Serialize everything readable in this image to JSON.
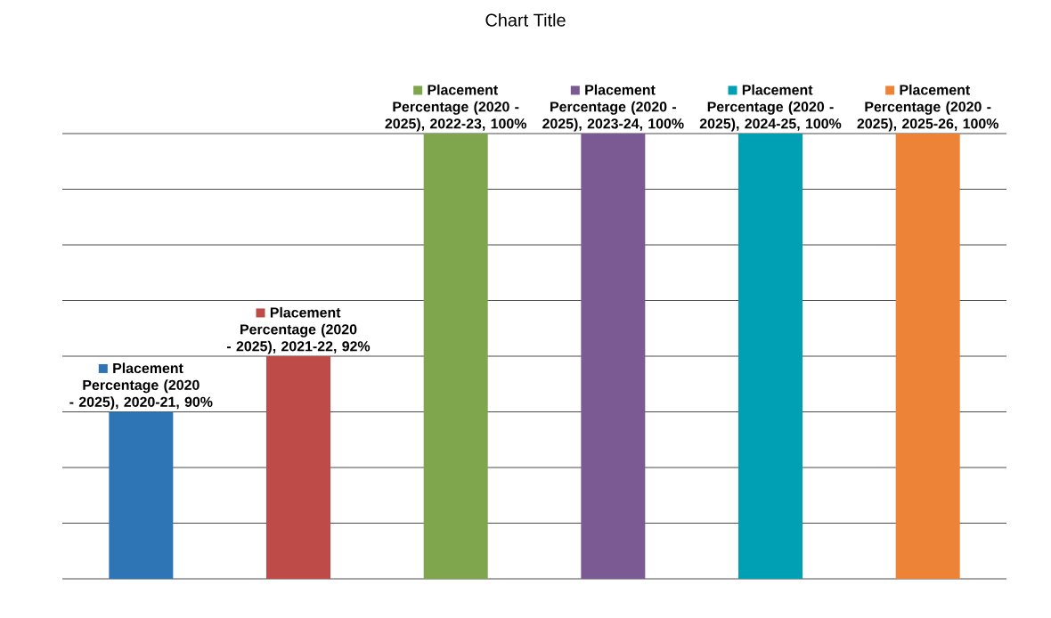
{
  "chart_data": {
    "type": "bar",
    "title": "Chart Title",
    "categories": [
      null,
      null,
      null,
      null,
      null,
      null
    ],
    "values": [
      90,
      92,
      100,
      100,
      100,
      100
    ],
    "colors": [
      "#2e75b6",
      "#be4b48",
      "#7fa54d",
      "#7b5a94",
      "#00a0b4",
      "#ed8337"
    ],
    "value_labels": [
      "Placement Percentage (2020 - 2025), 2020-21, 90%",
      "Placement Percentage (2020 - 2025), 2021-22, 92%",
      "Placement Percentage (2020 - 2025), 2022-23, 100%",
      "Placement Percentage (2020 - 2025), 2023-24, 100%",
      "Placement Percentage (2020 - 2025), 2024-25, 100%",
      "Placement Percentage (2020 - 2025), 2025-26, 100%"
    ],
    "ylim": [
      84,
      100
    ],
    "yticks": [
      {
        "value": 84,
        "label": null
      },
      {
        "value": 86,
        "label": null
      },
      {
        "value": 88,
        "label": null
      },
      {
        "value": 90,
        "label": null
      },
      {
        "value": 92,
        "label": null
      },
      {
        "value": 94,
        "label": null
      },
      {
        "value": 96,
        "label": null
      },
      {
        "value": 98,
        "label": null
      },
      {
        "value": 100,
        "label": null
      }
    ],
    "grid": "y"
  }
}
